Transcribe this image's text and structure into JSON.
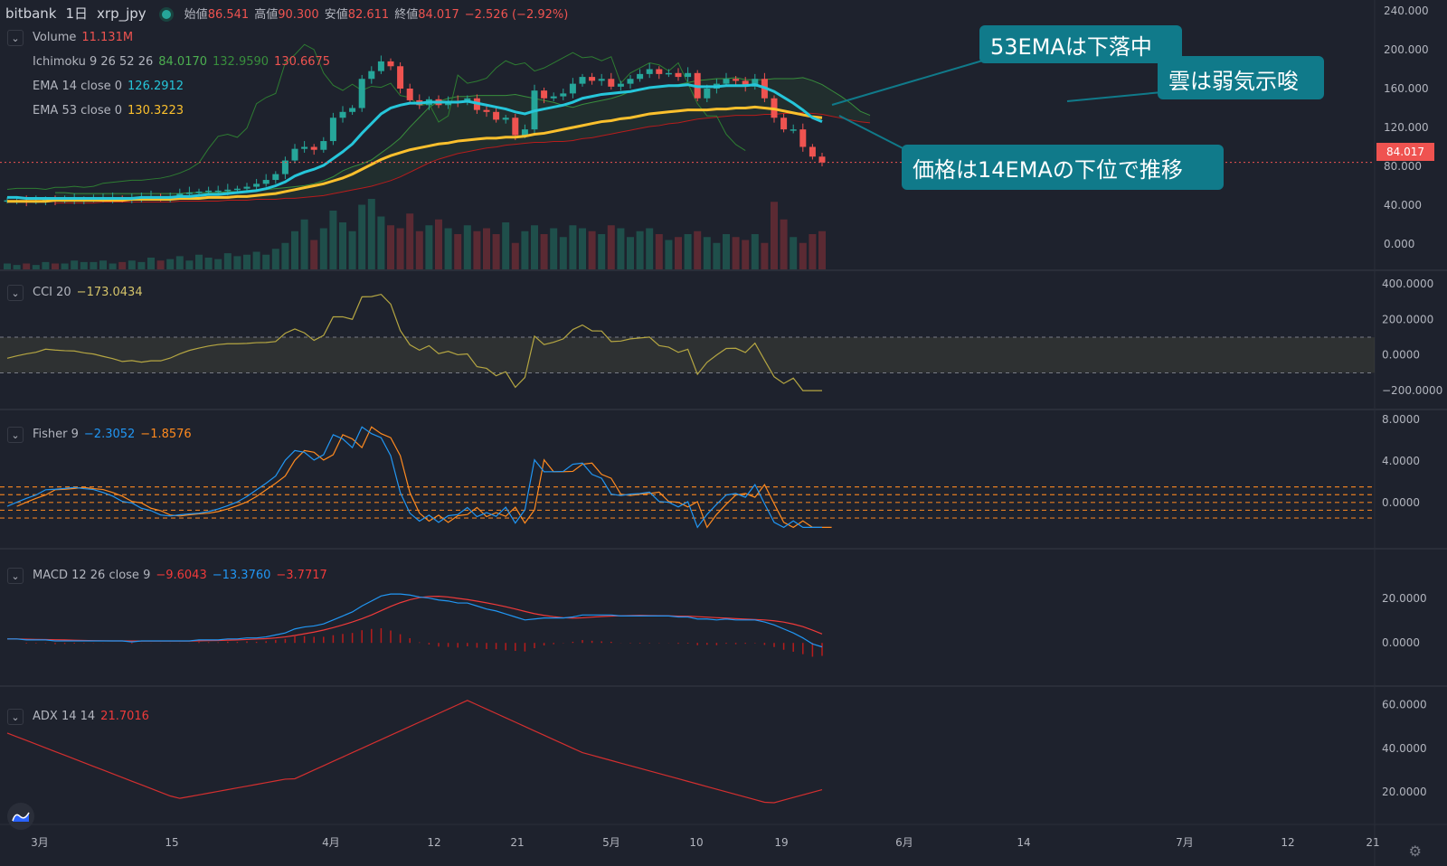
{
  "header": {
    "exchange": "bitbank",
    "interval": "1日",
    "symbol": "xrp_jpy",
    "open_label": "始値",
    "open": "86.541",
    "high_label": "高値",
    "high": "90.300",
    "low_label": "安値",
    "low": "82.611",
    "close_label": "終値",
    "close": "84.017",
    "change": "−2.526 (−2.92%)"
  },
  "legends": {
    "volume": {
      "label": "Volume",
      "value": "11.131M"
    },
    "ichimoku": {
      "label": "Ichimoku 9 26 52 26",
      "v1": "84.0170",
      "v2": "132.9590",
      "v3": "130.6675"
    },
    "ema14": {
      "label": "EMA 14 close 0",
      "value": "126.2912"
    },
    "ema53": {
      "label": "EMA 53 close 0",
      "value": "130.3223"
    },
    "cci": {
      "label": "CCI 20",
      "value": "−173.0434"
    },
    "fisher": {
      "label": "Fisher 9",
      "v1": "−2.3052",
      "v2": "−1.8576"
    },
    "macd": {
      "label": "MACD 12 26 close 9",
      "v1": "−9.6043",
      "v2": "−13.3760",
      "v3": "−3.7717"
    },
    "adx": {
      "label": "ADX 14 14",
      "value": "21.7016"
    }
  },
  "callouts": {
    "ema53": "53EMAは下落中",
    "cloud": "雲は弱気示唆",
    "price": "価格は14EMAの下位で推移"
  },
  "price_tag": "84.017",
  "colors": {
    "background": "#1e222d",
    "up": "#26a69a",
    "down": "#ef5350",
    "ema14": "#26c6da",
    "ema53": "#fbc02d",
    "ichimoku_green": "#388e3c",
    "ichimoku_red": "#b71c1c",
    "cci": "#b5a642",
    "fisher_blue": "#2196f3",
    "fisher_orange": "#ff8a1f",
    "macd_blue": "#2196f3",
    "macd_red": "#ef3a3a",
    "adx": "#d32f2f",
    "callout": "#107a8a"
  },
  "chart_data": {
    "type": "line",
    "x_axis_labels": [
      "3月",
      "15",
      "4月",
      "12",
      "21",
      "5月",
      "10",
      "19",
      "6月",
      "14",
      "7月",
      "12",
      "21"
    ],
    "panes": [
      {
        "name": "price",
        "y_ticks": [
          "240.000",
          "200.000",
          "160.000",
          "120.000",
          "80.000",
          "40.000",
          "0.000"
        ],
        "ylim": [
          0,
          240
        ],
        "last_price": 84.017,
        "close": [
          45,
          45,
          44,
          44,
          46,
          45,
          45,
          46,
          46,
          47,
          47,
          47,
          46,
          48,
          48,
          49,
          48,
          49,
          52,
          53,
          54,
          55,
          55,
          56,
          57,
          59,
          62,
          66,
          72,
          86,
          98,
          100,
          97,
          106,
          130,
          136,
          140,
          170,
          178,
          188,
          183,
          160,
          148,
          143,
          149,
          143,
          147,
          146,
          150,
          138,
          136,
          128,
          130,
          112,
          118,
          158,
          150,
          152,
          155,
          165,
          172,
          168,
          170,
          162,
          165,
          170,
          175,
          180,
          175,
          176,
          172,
          176,
          150,
          160,
          165,
          170,
          168,
          162,
          170,
          150,
          130,
          118,
          118,
          100,
          90,
          84
        ],
        "ema14": [
          48,
          48,
          47,
          47,
          47,
          47,
          47,
          47,
          47,
          47,
          47,
          47,
          47,
          47,
          48,
          48,
          48,
          48,
          49,
          49,
          50,
          51,
          51,
          52,
          53,
          54,
          55,
          57,
          60,
          64,
          70,
          74,
          77,
          81,
          88,
          95,
          103,
          114,
          124,
          134,
          140,
          143,
          145,
          145,
          146,
          146,
          146,
          146,
          147,
          145,
          143,
          141,
          139,
          136,
          134,
          137,
          139,
          141,
          143,
          146,
          150,
          152,
          154,
          155,
          156,
          157,
          159,
          161,
          162,
          163,
          163,
          164,
          162,
          162,
          162,
          163,
          163,
          163,
          164,
          161,
          157,
          151,
          145,
          138,
          130,
          126
        ],
        "ema53": [
          44,
          44,
          44,
          44,
          44,
          45,
          45,
          45,
          45,
          45,
          45,
          45,
          45,
          46,
          46,
          46,
          46,
          46,
          47,
          47,
          47,
          48,
          48,
          48,
          49,
          49,
          50,
          51,
          52,
          54,
          56,
          58,
          60,
          62,
          65,
          68,
          72,
          77,
          82,
          87,
          91,
          94,
          97,
          99,
          101,
          103,
          104,
          106,
          107,
          108,
          109,
          109,
          110,
          110,
          111,
          113,
          114,
          116,
          118,
          120,
          122,
          124,
          126,
          127,
          129,
          130,
          132,
          134,
          135,
          136,
          137,
          138,
          138,
          138,
          139,
          139,
          140,
          140,
          141,
          140,
          139,
          137,
          135,
          133,
          131,
          130
        ],
        "volume": [
          4,
          3,
          4,
          3,
          5,
          4,
          4,
          6,
          5,
          5,
          6,
          4,
          5,
          6,
          5,
          8,
          6,
          7,
          9,
          6,
          10,
          8,
          7,
          11,
          9,
          10,
          12,
          10,
          14,
          18,
          26,
          34,
          20,
          28,
          40,
          32,
          26,
          44,
          48,
          36,
          30,
          28,
          38,
          26,
          30,
          34,
          28,
          24,
          30,
          26,
          28,
          24,
          32,
          18,
          26,
          30,
          24,
          28,
          22,
          30,
          28,
          26,
          24,
          30,
          28,
          22,
          26,
          28,
          24,
          20,
          22,
          24,
          26,
          22,
          18,
          24,
          22,
          20,
          24,
          18,
          46,
          34,
          22,
          18,
          24,
          26
        ]
      },
      {
        "name": "CCI 20",
        "y_ticks": [
          "400.0000",
          "200.0000",
          "0.0000",
          "−200.0000"
        ],
        "ylim": [
          -250,
          420
        ]
      },
      {
        "name": "Fisher 9",
        "y_ticks": [
          "8.0000",
          "4.0000",
          "0.0000"
        ],
        "ylim": [
          -3.5,
          8
        ]
      },
      {
        "name": "MACD 12 26 close 9",
        "y_ticks": [
          "20.0000",
          "0.0000"
        ],
        "ylim": [
          -15,
          38
        ]
      },
      {
        "name": "ADX 14 14",
        "y_ticks": [
          "60.0000",
          "40.0000",
          "20.0000"
        ],
        "ylim": [
          10,
          64
        ]
      }
    ]
  }
}
